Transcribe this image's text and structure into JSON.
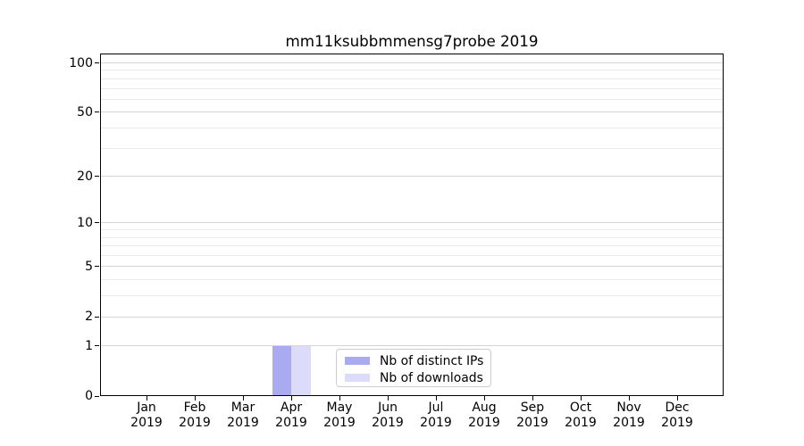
{
  "chart_data": {
    "type": "bar",
    "title": "mm11ksubbmmensg7probe 2019",
    "x_axis": {
      "categories": [
        "Jan",
        "Feb",
        "Mar",
        "Apr",
        "May",
        "Jun",
        "Jul",
        "Aug",
        "Sep",
        "Oct",
        "Nov",
        "Dec"
      ],
      "year": "2019"
    },
    "y_axis": {
      "scale": "log1p",
      "ticks": [
        0,
        1,
        2,
        5,
        10,
        20,
        50,
        100
      ],
      "minor_gridlines": [
        3,
        4,
        6,
        7,
        8,
        9,
        30,
        40,
        60,
        70,
        80,
        90
      ],
      "max": 114,
      "ylim": [
        0,
        114
      ]
    },
    "series": [
      {
        "name": "Nb of distinct IPs",
        "color": "#a9aaf0",
        "values": [
          0,
          0,
          0,
          1,
          0,
          0,
          0,
          0,
          0,
          0,
          0,
          0
        ]
      },
      {
        "name": "Nb of downloads",
        "color": "#dcdcfa",
        "values": [
          0,
          0,
          0,
          1,
          0,
          0,
          0,
          0,
          0,
          0,
          0,
          0
        ]
      }
    ],
    "grid": {
      "orientation": "horizontal",
      "major_color": "#d4d4d4",
      "minor_color": "#eaeaea"
    },
    "legend": {
      "position": "bottom-center",
      "border_color": "#cccccc"
    },
    "spine_color": "#000000"
  }
}
